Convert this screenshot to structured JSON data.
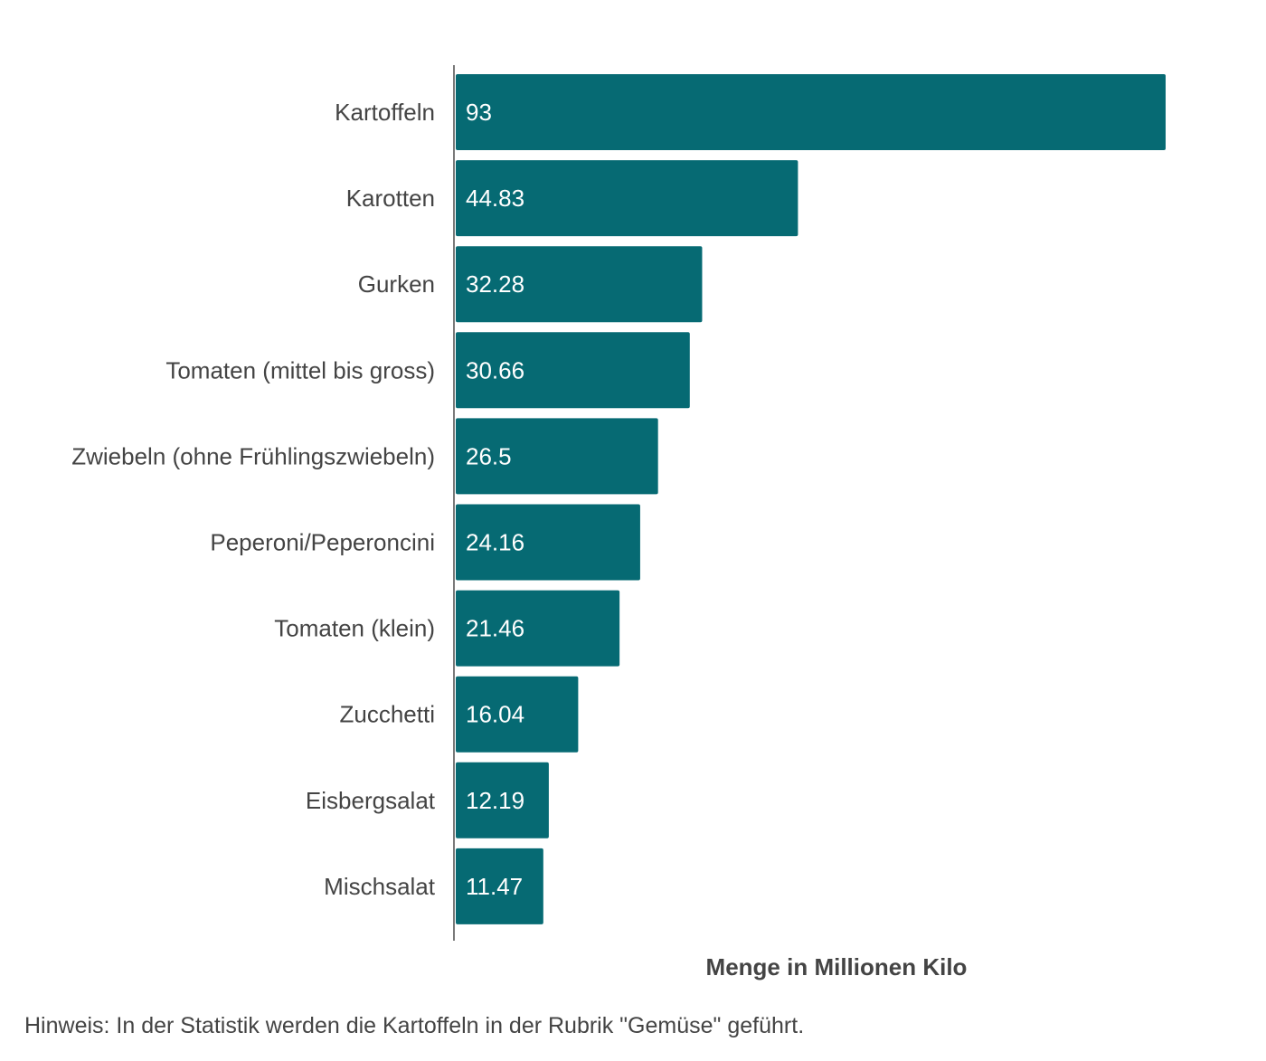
{
  "chart_data": {
    "type": "bar",
    "orientation": "horizontal",
    "categories": [
      "Kartoffeln",
      "Karotten",
      "Gurken",
      "Tomaten (mittel bis gross)",
      "Zwiebeln (ohne Frühlingszwiebeln)",
      "Peperoni/Peperoncini",
      "Tomaten (klein)",
      "Zucchetti",
      "Eisbergsalat",
      "Mischsalat"
    ],
    "values": [
      93,
      44.83,
      32.28,
      30.66,
      26.5,
      24.16,
      21.46,
      16.04,
      12.19,
      11.47
    ],
    "value_labels": [
      "93",
      "44.83",
      "32.28",
      "30.66",
      "26.5",
      "24.16",
      "21.46",
      "16.04",
      "12.19",
      "11.47"
    ],
    "xlabel": "Menge in Millionen Kilo",
    "xlim": [
      0,
      93
    ],
    "grid": false,
    "color": "#066a73",
    "note": "Hinweis: In der Statistik werden die Kartoffeln in der Rubrik \"Gemüse\" geführt."
  }
}
